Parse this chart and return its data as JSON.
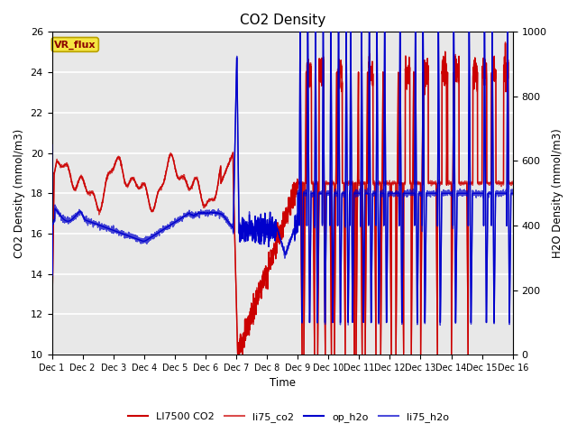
{
  "title": "CO2 Density",
  "xlabel": "Time",
  "ylabel_left": "CO2 Density (mmol/m3)",
  "ylabel_right": "H2O Density (mmol/m3)",
  "xlim": [
    0,
    15
  ],
  "ylim_left": [
    10,
    26
  ],
  "ylim_right": [
    0,
    1000
  ],
  "xtick_positions": [
    0,
    1,
    2,
    3,
    4,
    5,
    6,
    7,
    8,
    9,
    10,
    11,
    12,
    13,
    14,
    15
  ],
  "xtick_labels": [
    "Dec 1",
    "Dec 2",
    "Dec 3",
    "Dec 4",
    "Dec 5",
    "Dec 6",
    "Dec 7",
    "Dec 8",
    "Dec 9",
    "Dec 10",
    "Dec 11",
    "Dec 12",
    "Dec 13",
    "Dec 14",
    "Dec 15",
    "Dec 16"
  ],
  "yticks_left": [
    10,
    12,
    14,
    16,
    18,
    20,
    22,
    24,
    26
  ],
  "yticks_right": [
    0,
    200,
    400,
    600,
    800,
    1000
  ],
  "bg_color": "#e8e8e8",
  "grid_color": "#ffffff",
  "vr_flux_label": "VR_flux",
  "vr_flux_bg": "#f5e642",
  "vr_flux_border": "#b8a000",
  "vr_flux_text_color": "#8b0000",
  "co2_color": "#cc0000",
  "h2o_color": "#0000cc",
  "legend_entries": [
    "LI7500 CO2",
    "li75_co2",
    "op_h2o",
    "li75_h2o"
  ],
  "legend_colors_red": [
    "#cc0000",
    "#cc0000"
  ],
  "legend_colors_blue": [
    "#0000cc",
    "#0000cc"
  ],
  "line_width": 1.0
}
